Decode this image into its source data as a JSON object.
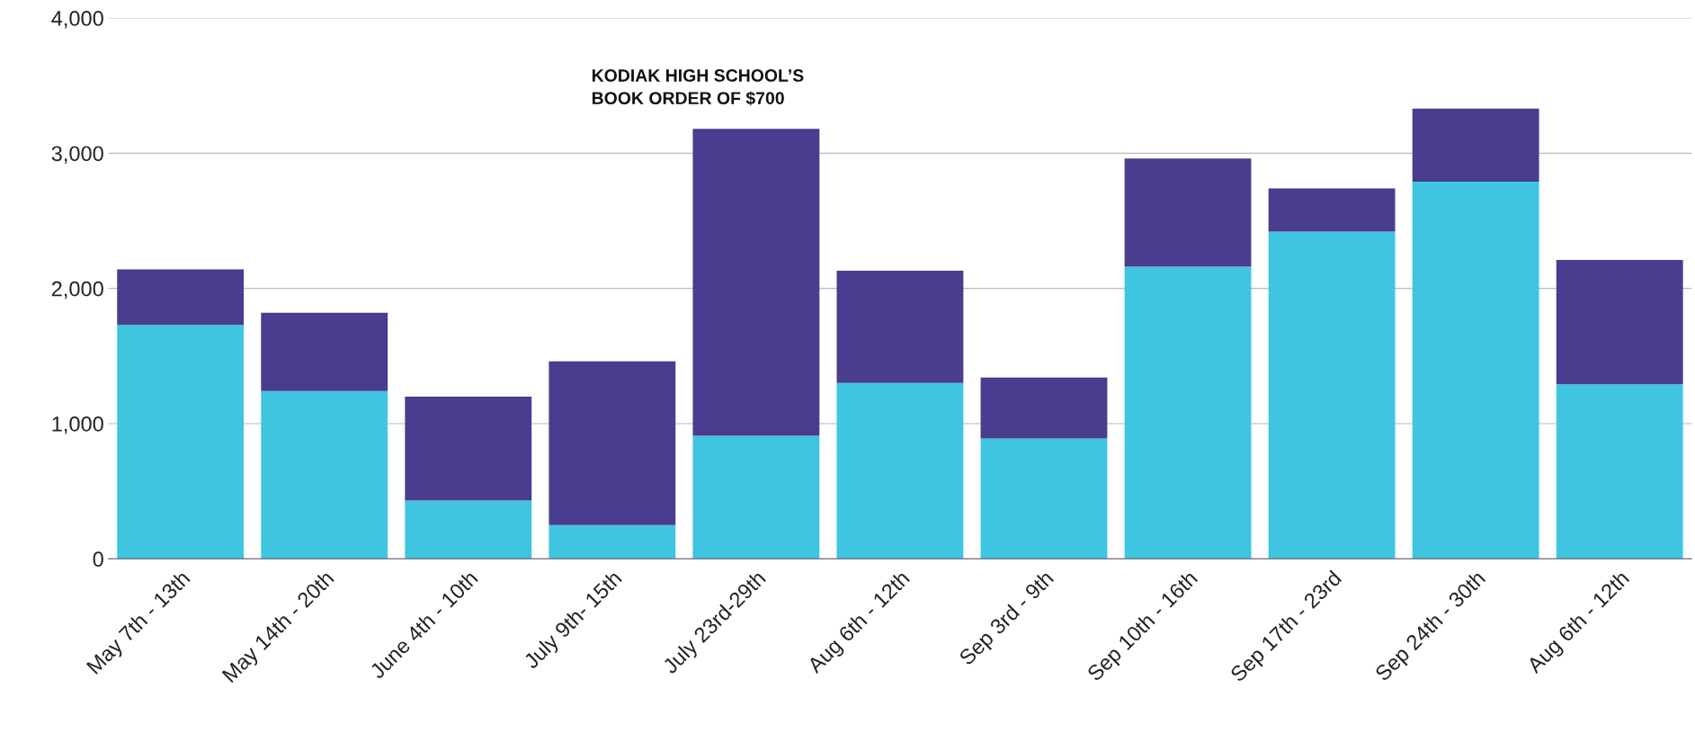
{
  "chart_data": {
    "type": "bar",
    "stacked": true,
    "categories": [
      "May 7th - 13th",
      "May 14th - 20th",
      "June 4th - 10th",
      "July 9th- 15th",
      "July 23rd-29th",
      "Aug 6th - 12th",
      "Sep 3rd - 9th",
      "Sep 10th - 16th",
      "Sep 17th - 23rd",
      "Sep 24th - 30th",
      "Aug 6th - 12th"
    ],
    "series": [
      {
        "color": "#3fc5e0",
        "values": [
          1730,
          1240,
          430,
          250,
          910,
          1300,
          890,
          2160,
          2420,
          2790,
          1290
        ]
      },
      {
        "color": "#4a3c8e",
        "values": [
          410,
          580,
          770,
          1210,
          2270,
          830,
          450,
          800,
          320,
          540,
          920
        ]
      }
    ],
    "ylim": [
      0,
      4000
    ],
    "yticks": [
      {
        "value": 0,
        "label": "0"
      },
      {
        "value": 1000,
        "label": "1,000"
      },
      {
        "value": 2000,
        "label": "2,000"
      },
      {
        "value": 3000,
        "label": "3,000"
      },
      {
        "value": 4000,
        "label": "4,000"
      }
    ],
    "grid": "y",
    "annotations": [
      "KODIAK HIGH SCHOOL’S\nBOOK ORDER OF $700"
    ]
  }
}
